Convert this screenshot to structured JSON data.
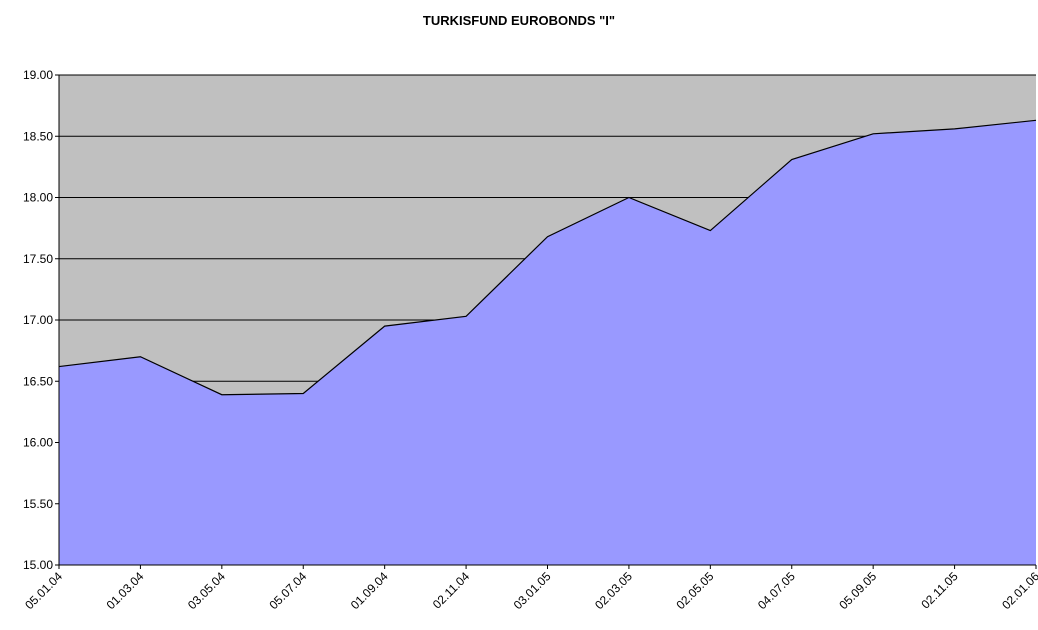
{
  "chart_data": {
    "type": "area",
    "title": "TURKISFUND EUROBONDS \"I\"",
    "categories": [
      "05.01.04",
      "01.03.04",
      "03.05.04",
      "05.07.04",
      "01.09.04",
      "02.11.04",
      "03.01.05",
      "02.03.05",
      "02.05.05",
      "04.07.05",
      "05.09.05",
      "02.11.05",
      "02.01.06"
    ],
    "values": [
      16.62,
      16.7,
      16.39,
      16.4,
      16.95,
      17.03,
      17.68,
      18.0,
      17.73,
      18.31,
      18.52,
      18.56,
      18.63
    ],
    "color": "#9999ff",
    "ylim": [
      15,
      19
    ],
    "yticks": [
      {
        "value": 15,
        "label": "15.00"
      },
      {
        "value": 15.5,
        "label": "15.50"
      },
      {
        "value": 16,
        "label": "16.00"
      },
      {
        "value": 16.5,
        "label": "16.50"
      },
      {
        "value": 17,
        "label": "17.00"
      },
      {
        "value": 17.5,
        "label": "17.50"
      },
      {
        "value": 18,
        "label": "18.00"
      },
      {
        "value": 18.5,
        "label": "18.50"
      },
      {
        "value": 19,
        "label": "19.00"
      }
    ],
    "grid": true
  }
}
